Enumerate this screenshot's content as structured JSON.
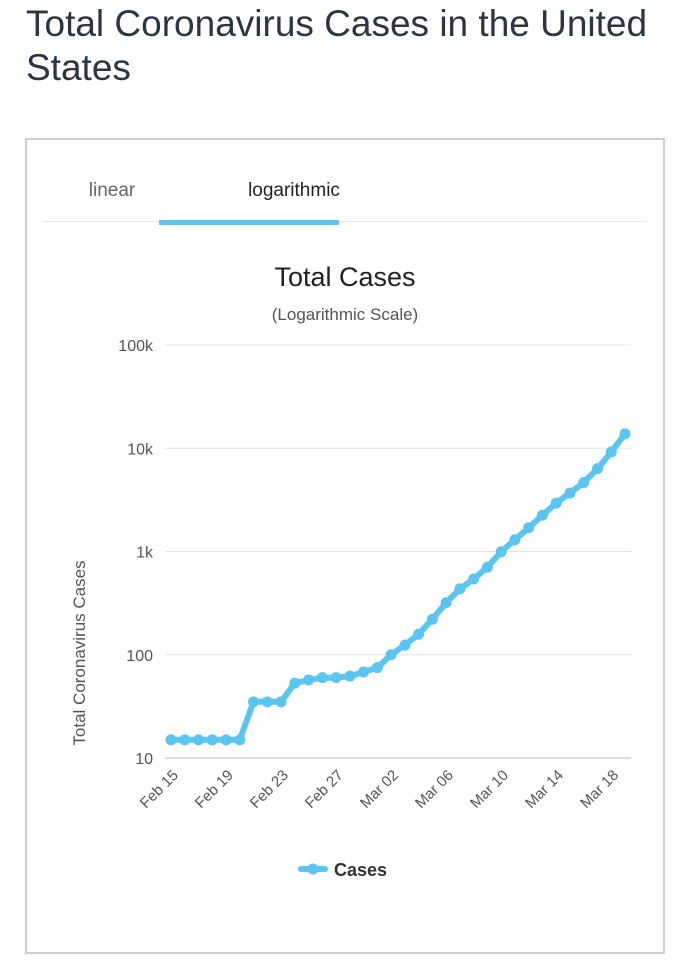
{
  "page": {
    "title": "Total Coronavirus Cases in the United States"
  },
  "tabs": [
    {
      "label": "linear",
      "active": false
    },
    {
      "label": "logarithmic",
      "active": true
    }
  ],
  "accent_color": "#5bc5f2",
  "chart_data": {
    "type": "line",
    "title": "Total Cases",
    "subtitle": "(Logarithmic Scale)",
    "ylabel": "Total Coronavirus Cases",
    "xlabel": "",
    "yscale": "log",
    "ylim": [
      10,
      100000
    ],
    "y_ticks": [
      {
        "value": 10,
        "label": "10"
      },
      {
        "value": 100,
        "label": "100"
      },
      {
        "value": 1000,
        "label": "1k"
      },
      {
        "value": 10000,
        "label": "10k"
      },
      {
        "value": 100000,
        "label": "100k"
      }
    ],
    "x_tick_labels": [
      "Feb 15",
      "Feb 19",
      "Feb 23",
      "Feb 27",
      "Mar 02",
      "Mar 06",
      "Mar 10",
      "Mar 14",
      "Mar 18"
    ],
    "grid": true,
    "legend_position": "bottom",
    "categories": [
      "Feb 15",
      "Feb 16",
      "Feb 17",
      "Feb 18",
      "Feb 19",
      "Feb 20",
      "Feb 21",
      "Feb 22",
      "Feb 23",
      "Feb 24",
      "Feb 25",
      "Feb 26",
      "Feb 27",
      "Feb 28",
      "Feb 29",
      "Mar 01",
      "Mar 02",
      "Mar 03",
      "Mar 04",
      "Mar 05",
      "Mar 06",
      "Mar 07",
      "Mar 08",
      "Mar 09",
      "Mar 10",
      "Mar 11",
      "Mar 12",
      "Mar 13",
      "Mar 14",
      "Mar 15",
      "Mar 16",
      "Mar 17",
      "Mar 18",
      "Mar 19"
    ],
    "series": [
      {
        "name": "Cases",
        "color": "#5bc5f2",
        "values": [
          15,
          15,
          15,
          15,
          15,
          15,
          35,
          35,
          35,
          53,
          57,
          60,
          60,
          62,
          68,
          75,
          100,
          124,
          158,
          221,
          319,
          435,
          541,
          704,
          994,
          1301,
          1697,
          2247,
          2943,
          3680,
          4663,
          6344,
          9197,
          13779
        ]
      }
    ]
  }
}
